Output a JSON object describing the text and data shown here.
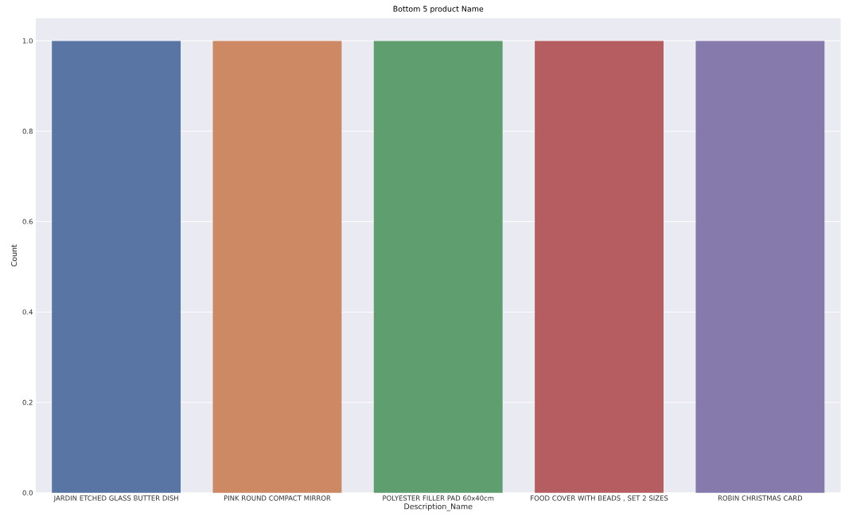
{
  "chart_data": {
    "type": "bar",
    "title": "Bottom 5 product Name",
    "xlabel": "Description_Name",
    "ylabel": "Count",
    "categories": [
      "JARDIN ETCHED GLASS BUTTER DISH",
      "PINK ROUND COMPACT MIRROR",
      "POLYESTER FILLER PAD 60x40cm",
      "FOOD COVER WITH BEADS , SET 2 SIZES",
      "ROBIN CHRISTMAS CARD"
    ],
    "values": [
      1,
      1,
      1,
      1,
      1
    ],
    "colors": [
      "#5975a4",
      "#cc8963",
      "#5f9e6e",
      "#b55d60",
      "#857aab"
    ],
    "ylim": [
      0,
      1.05
    ],
    "yticks": [
      {
        "value": 0,
        "label": "0.0"
      },
      {
        "value": 0.2,
        "label": "0.2"
      },
      {
        "value": 0.4,
        "label": "0.4"
      },
      {
        "value": 0.6,
        "label": "0.6"
      },
      {
        "value": 0.8,
        "label": "0.8"
      },
      {
        "value": 1.0,
        "label": "1.0"
      }
    ],
    "grid": "y"
  }
}
